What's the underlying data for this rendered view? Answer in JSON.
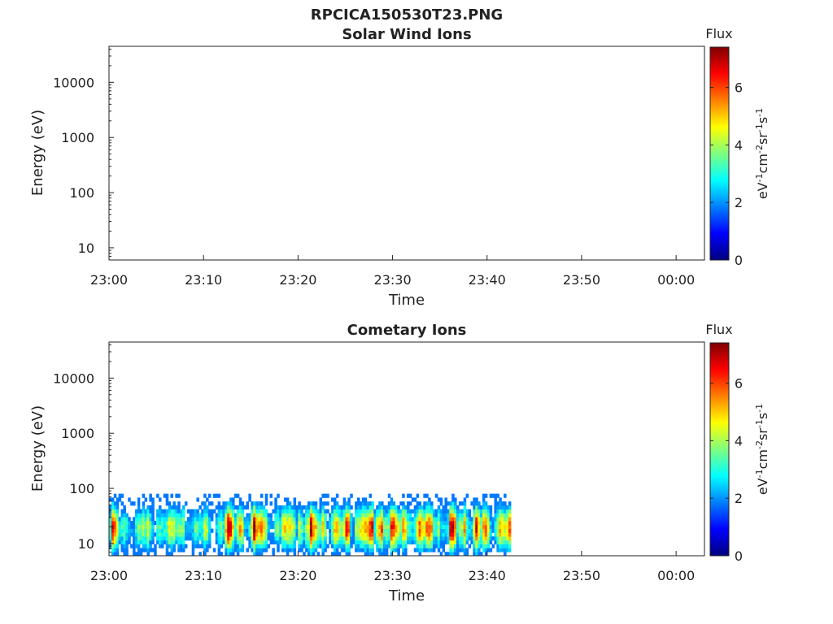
{
  "figure": {
    "title": "RPCICA150530T23.PNG"
  },
  "colors": {
    "colormap": [
      "#00007f",
      "#0000ff",
      "#007fff",
      "#00ffff",
      "#7fff7f",
      "#ffff00",
      "#ff7f00",
      "#ff0000",
      "#7f0000"
    ],
    "axis": "#222222"
  },
  "chart_data": [
    {
      "type": "heatmap",
      "title": "Solar Wind Ions",
      "xlabel": "Time",
      "ylabel": "Energy (eV)",
      "x_scale": "time",
      "y_scale": "log",
      "xlim": [
        "23:00",
        "00:03"
      ],
      "ylim": [
        6,
        45000
      ],
      "xticks": [
        "23:00",
        "23:10",
        "23:20",
        "23:30",
        "23:40",
        "23:50",
        "00:00"
      ],
      "yticks": [
        "10",
        "100",
        "1000",
        "10000"
      ],
      "colorbar": {
        "title": "Flux",
        "label": "eV-1cm-2sr-1s-1",
        "range": [
          0,
          7.4
        ],
        "ticks": [
          "0",
          "2",
          "4",
          "6"
        ]
      },
      "data": "no data (empty panel)"
    },
    {
      "type": "heatmap",
      "title": "Cometary Ions",
      "xlabel": "Time",
      "ylabel": "Energy (eV)",
      "x_scale": "time",
      "y_scale": "log",
      "xlim": [
        "23:00",
        "00:03"
      ],
      "ylim": [
        6,
        45000
      ],
      "xticks": [
        "23:00",
        "23:10",
        "23:20",
        "23:30",
        "23:40",
        "23:50",
        "00:00"
      ],
      "yticks": [
        "10",
        "100",
        "1000",
        "10000"
      ],
      "colorbar": {
        "title": "Flux",
        "label": "eV-1cm-2sr-1s-1",
        "range": [
          0,
          7.4
        ],
        "ticks": [
          "0",
          "2",
          "4",
          "6"
        ]
      },
      "data_extent": {
        "time_start": "23:00",
        "time_end": "23:42.5",
        "energy_min": 6,
        "energy_max": 80
      },
      "flux_profile": [
        {
          "from": "23:00",
          "to": "23:01",
          "peak_flux": 6.4
        },
        {
          "from": "23:01",
          "to": "23:10",
          "peak_flux": 5.0
        },
        {
          "from": "23:10",
          "to": "23:12",
          "peak_flux": 5.5
        },
        {
          "from": "23:12",
          "to": "23:17",
          "peak_flux": 6.8
        },
        {
          "from": "23:17",
          "to": "23:19",
          "peak_flux": 5.8
        },
        {
          "from": "23:19",
          "to": "23:23",
          "peak_flux": 6.6
        },
        {
          "from": "23:23",
          "to": "23:25",
          "peak_flux": 5.2
        },
        {
          "from": "23:25",
          "to": "23:35",
          "peak_flux": 7.2
        },
        {
          "from": "23:35",
          "to": "23:36",
          "peak_flux": 5.0
        },
        {
          "from": "23:36",
          "to": "23:42.5",
          "peak_flux": 6.9
        }
      ]
    }
  ]
}
